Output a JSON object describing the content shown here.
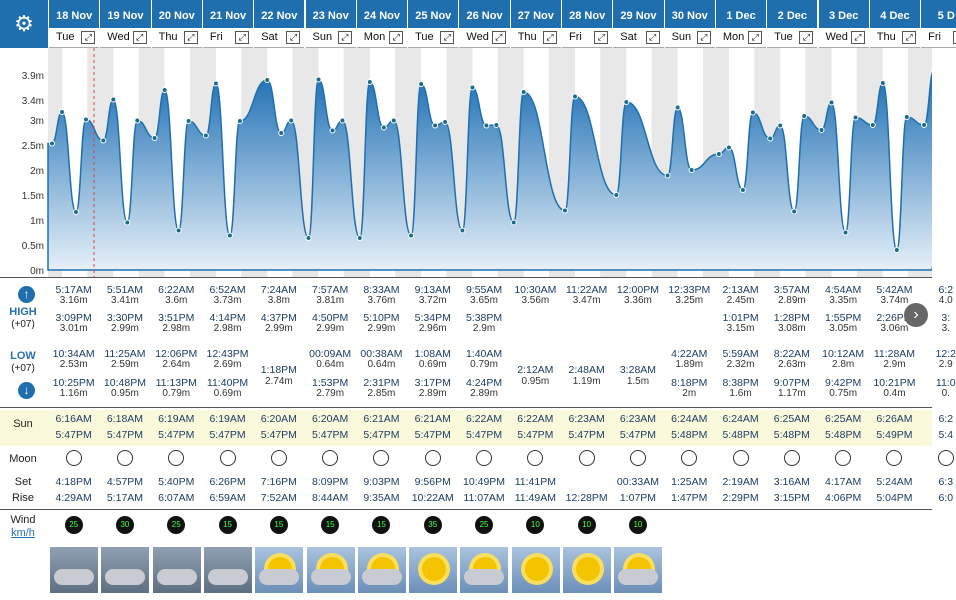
{
  "days": [
    {
      "date": "18 Nov",
      "wd": "Tue",
      "high1": "5:17AM",
      "hh1": "3.16m",
      "high2": "3:09PM",
      "hh2": "3.01m",
      "low1": "10:34AM",
      "lh1": "2.53m",
      "low2": "10:25PM",
      "lh2": "1.16m",
      "rise": "6:16AM",
      "set": "5:47PM",
      "mset": "4:18PM",
      "mrise": "4:29AM",
      "wind": "25"
    },
    {
      "date": "19 Nov",
      "wd": "Wed",
      "high1": "5:51AM",
      "hh1": "3.41m",
      "high2": "3:30PM",
      "hh2": "2.99m",
      "low1": "11:25AM",
      "lh1": "2.59m",
      "low2": "10:48PM",
      "lh2": "0.95m",
      "rise": "6:18AM",
      "set": "5:47PM",
      "mset": "4:57PM",
      "mrise": "5:17AM",
      "wind": "30"
    },
    {
      "date": "20 Nov",
      "wd": "Thu",
      "high1": "6:22AM",
      "hh1": "3.6m",
      "high2": "3:51PM",
      "hh2": "2.98m",
      "low1": "12:06PM",
      "lh1": "2.64m",
      "low2": "11:13PM",
      "lh2": "0.79m",
      "rise": "6:19AM",
      "set": "5:47PM",
      "mset": "5:40PM",
      "mrise": "6:07AM",
      "wind": "25"
    },
    {
      "date": "21 Nov",
      "wd": "Fri",
      "high1": "6:52AM",
      "hh1": "3.73m",
      "high2": "4:14PM",
      "hh2": "2.98m",
      "low1": "12:43PM",
      "lh1": "2.69m",
      "low2": "11:40PM",
      "lh2": "0.69m",
      "rise": "6:19AM",
      "set": "5:47PM",
      "mset": "6:26PM",
      "mrise": "6:59AM",
      "wind": "15"
    },
    {
      "date": "22 Nov",
      "wd": "Sat",
      "high1": "7:24AM",
      "hh1": "3.8m",
      "high2": "4:37PM",
      "hh2": "2.99m",
      "low1": "",
      "lh1": "",
      "low2": "1:18PM",
      "lh2": "2.74m",
      "rise": "6:20AM",
      "set": "5:47PM",
      "mset": "7:16PM",
      "mrise": "7:52AM",
      "wind": "15"
    },
    {
      "date": "23 Nov",
      "wd": "Sun",
      "high1": "7:57AM",
      "hh1": "3.81m",
      "high2": "4:50PM",
      "hh2": "2.99m",
      "low1": "00:09AM",
      "lh1": "0.64m",
      "low2": "1:53PM",
      "lh2": "2.79m",
      "rise": "6:20AM",
      "set": "5:47PM",
      "mset": "8:09PM",
      "mrise": "8:44AM",
      "wind": "15"
    },
    {
      "date": "24 Nov",
      "wd": "Mon",
      "high1": "8:33AM",
      "hh1": "3.76m",
      "high2": "5:10PM",
      "hh2": "2.99m",
      "low1": "00:38AM",
      "lh1": "0.64m",
      "low2": "2:31PM",
      "lh2": "2.85m",
      "rise": "6:21AM",
      "set": "5:47PM",
      "mset": "9:03PM",
      "mrise": "9:35AM",
      "wind": "15"
    },
    {
      "date": "25 Nov",
      "wd": "Tue",
      "high1": "9:13AM",
      "hh1": "3.72m",
      "high2": "5:34PM",
      "hh2": "2.96m",
      "low1": "1:08AM",
      "lh1": "0.69m",
      "low2": "3:17PM",
      "lh2": "2.89m",
      "rise": "6:21AM",
      "set": "5:47PM",
      "mset": "9:56PM",
      "mrise": "10:22AM",
      "wind": "35"
    },
    {
      "date": "26 Nov",
      "wd": "Wed",
      "high1": "9:55AM",
      "hh1": "3.65m",
      "high2": "5:38PM",
      "hh2": "2.9m",
      "low1": "1:40AM",
      "lh1": "0.79m",
      "low2": "4:24PM",
      "lh2": "2.89m",
      "rise": "6:22AM",
      "set": "5:47PM",
      "mset": "10:49PM",
      "mrise": "11:07AM",
      "wind": "25"
    },
    {
      "date": "27 Nov",
      "wd": "Thu",
      "high1": "10:30AM",
      "hh1": "3.56m",
      "high2": "",
      "hh2": "",
      "low1": "2:12AM",
      "lh1": "0.95m",
      "low2": "",
      "lh2": "",
      "rise": "6:22AM",
      "set": "5:47PM",
      "mset": "11:41PM",
      "mrise": "11:49AM",
      "wind": "10"
    },
    {
      "date": "28 Nov",
      "wd": "Fri",
      "high1": "11:22AM",
      "hh1": "3.47m",
      "high2": "",
      "hh2": "",
      "low1": "2:48AM",
      "lh1": "1.19m",
      "low2": "",
      "lh2": "",
      "rise": "6:23AM",
      "set": "5:47PM",
      "mset": "",
      "mrise": "12:28PM",
      "wind": "10"
    },
    {
      "date": "29 Nov",
      "wd": "Sat",
      "high1": "12:00PM",
      "hh1": "3.36m",
      "high2": "",
      "hh2": "",
      "low1": "3:28AM",
      "lh1": "1.5m",
      "low2": "",
      "lh2": "",
      "rise": "6:23AM",
      "set": "5:47PM",
      "mset": "00:33AM",
      "mrise": "1:07PM",
      "wind": "10"
    },
    {
      "date": "30 Nov",
      "wd": "Sun",
      "high1": "12:33PM",
      "hh1": "3.25m",
      "high2": "",
      "hh2": "",
      "low1": "4:22AM",
      "lh1": "1.89m",
      "low2": "8:18PM",
      "lh2": "2m",
      "rise": "6:24AM",
      "set": "5:48PM",
      "mset": "1:25AM",
      "mrise": "1:47PM",
      "wind": ""
    },
    {
      "date": "1 Dec",
      "wd": "Mon",
      "high1": "2:13AM",
      "hh1": "2.45m",
      "high2": "1:01PM",
      "hh2": "3.15m",
      "low1": "5:59AM",
      "lh1": "2.32m",
      "low2": "8:38PM",
      "lh2": "1.6m",
      "rise": "6:24AM",
      "set": "5:48PM",
      "mset": "2:19AM",
      "mrise": "2:29PM",
      "wind": ""
    },
    {
      "date": "2 Dec",
      "wd": "Tue",
      "high1": "3:57AM",
      "hh1": "2.89m",
      "high2": "1:28PM",
      "hh2": "3.08m",
      "low1": "8:22AM",
      "lh1": "2.63m",
      "low2": "9:07PM",
      "lh2": "1.17m",
      "rise": "6:25AM",
      "set": "5:48PM",
      "mset": "3:16AM",
      "mrise": "3:15PM",
      "wind": ""
    },
    {
      "date": "3 Dec",
      "wd": "Wed",
      "high1": "4:54AM",
      "hh1": "3.35m",
      "high2": "1:55PM",
      "hh2": "3.05m",
      "low1": "10:12AM",
      "lh1": "2.8m",
      "low2": "9:42PM",
      "lh2": "0.75m",
      "rise": "6:25AM",
      "set": "5:48PM",
      "mset": "4:17AM",
      "mrise": "4:06PM",
      "wind": ""
    },
    {
      "date": "4 Dec",
      "wd": "Thu",
      "high1": "5:42AM",
      "hh1": "3.74m",
      "high2": "2:26PM",
      "hh2": "3.06m",
      "low1": "11:28AM",
      "lh1": "2.9m",
      "low2": "10:21PM",
      "lh2": "0.4m",
      "rise": "6:26AM",
      "set": "5:49PM",
      "mset": "5:24AM",
      "mrise": "5:04PM",
      "wind": ""
    },
    {
      "date": "5 D",
      "wd": "Fri",
      "high1": "6:2",
      "hh1": "4.0",
      "high2": "3:",
      "hh2": "3.",
      "low1": "12:2",
      "lh1": "2.9",
      "low2": "11:0",
      "lh2": "0.",
      "rise": "6:2",
      "set": "5:4",
      "mset": "6:3",
      "mrise": "6:0",
      "wind": ""
    }
  ],
  "labels": {
    "high": "HIGH",
    "high_tz": "(+07)",
    "low": "LOW",
    "low_tz": "(+07)",
    "sun": "Sun",
    "moon": "Moon",
    "set": "Set",
    "rise": "Rise",
    "wind": "Wind",
    "wind_unit": "km/h"
  },
  "yaxis": [
    "3.9m",
    "3.4m",
    "3m",
    "2.5m",
    "2m",
    "1.5m",
    "1m",
    "0.5m",
    "0m"
  ],
  "chart_data": {
    "type": "area",
    "x": [
      "18 Nov",
      "19 Nov",
      "20 Nov",
      "21 Nov",
      "22 Nov",
      "23 Nov",
      "24 Nov",
      "25 Nov",
      "26 Nov",
      "27 Nov",
      "28 Nov",
      "29 Nov",
      "30 Nov",
      "1 Dec",
      "2 Dec",
      "3 Dec",
      "4 Dec"
    ],
    "ylim": [
      0,
      4.0
    ],
    "series": [
      {
        "values": [
          3.16,
          3.41,
          3.6,
          3.73,
          3.8,
          3.81,
          3.76,
          3.72,
          3.65,
          3.56,
          3.47,
          3.36,
          3.25,
          3.15,
          3.08,
          3.35,
          3.74
        ]
      }
    ]
  }
}
